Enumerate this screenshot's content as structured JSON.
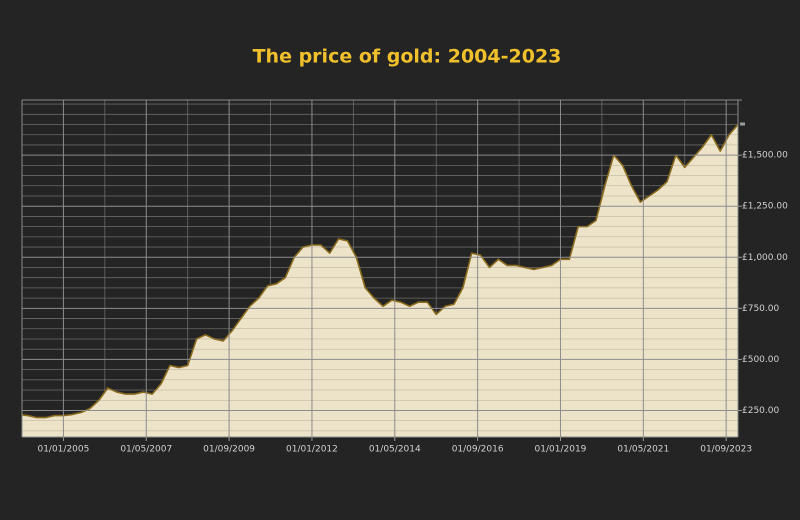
{
  "chart_data": {
    "type": "area",
    "title": "The price of gold: 2004-2023",
    "x": [
      "01/11/2003",
      "01/01/2004",
      "01/04/2004",
      "01/07/2004",
      "01/10/2004",
      "01/01/2005",
      "01/04/2005",
      "01/07/2005",
      "01/10/2005",
      "01/01/2006",
      "01/04/2006",
      "01/07/2006",
      "01/10/2006",
      "01/01/2007",
      "01/04/2007",
      "01/07/2007",
      "01/10/2007",
      "01/01/2008",
      "01/04/2008",
      "01/07/2008",
      "01/10/2008",
      "01/01/2009",
      "01/04/2009",
      "01/07/2009",
      "01/10/2009",
      "01/01/2010",
      "01/04/2010",
      "01/07/2010",
      "01/10/2010",
      "01/01/2011",
      "01/04/2011",
      "01/07/2011",
      "01/10/2011",
      "01/01/2012",
      "01/04/2012",
      "01/07/2012",
      "01/10/2012",
      "01/01/2013",
      "01/04/2013",
      "01/07/2013",
      "01/10/2013",
      "01/01/2014",
      "01/04/2014",
      "01/07/2014",
      "01/10/2014",
      "01/01/2015",
      "01/04/2015",
      "01/07/2015",
      "01/10/2015",
      "01/01/2016",
      "01/04/2016",
      "01/07/2016",
      "01/10/2016",
      "01/01/2017",
      "01/04/2017",
      "01/07/2017",
      "01/10/2017",
      "01/01/2018",
      "01/04/2018",
      "01/07/2018",
      "01/10/2018",
      "01/01/2019",
      "01/04/2019",
      "01/07/2019",
      "01/10/2019",
      "01/01/2020",
      "01/04/2020",
      "01/07/2020",
      "01/10/2020",
      "01/01/2021",
      "01/04/2021",
      "01/07/2021",
      "01/10/2021",
      "01/01/2022",
      "01/04/2022",
      "01/07/2022",
      "01/10/2022",
      "01/01/2023",
      "01/04/2023",
      "01/07/2023",
      "01/10/2023",
      "01/01/2024"
    ],
    "values": [
      228,
      225,
      215,
      215,
      225,
      225,
      230,
      240,
      260,
      300,
      360,
      340,
      330,
      330,
      340,
      330,
      380,
      470,
      460,
      470,
      600,
      620,
      600,
      590,
      640,
      700,
      760,
      800,
      860,
      870,
      900,
      1000,
      1050,
      1060,
      1060,
      1020,
      1090,
      1080,
      1000,
      850,
      800,
      760,
      790,
      780,
      760,
      780,
      780,
      720,
      760,
      770,
      850,
      1020,
      1010,
      950,
      990,
      960,
      960,
      950,
      940,
      950,
      960,
      990,
      990,
      1150,
      1150,
      1180,
      1350,
      1500,
      1450,
      1350,
      1270,
      1300,
      1330,
      1370,
      1500,
      1440,
      1490,
      1540,
      1600,
      1520,
      1600,
      1650
    ],
    "color": "#ede3c8",
    "line_color": "#8a6a1c",
    "xlim": [
      "01/11/2003",
      "01/01/2024"
    ],
    "xticks": [
      "01/01/2005",
      "01/05/2007",
      "01/09/2009",
      "01/01/2012",
      "01/05/2014",
      "01/09/2016",
      "01/01/2019",
      "01/05/2021",
      "01/09/2023"
    ],
    "ylim": [
      120,
      1770
    ],
    "yticks": [
      {
        "value": 250,
        "label": "£250.00"
      },
      {
        "value": 500,
        "label": "£500.00"
      },
      {
        "value": 750,
        "label": "£750.00"
      },
      {
        "value": 1000,
        "label": "£1,000.00"
      },
      {
        "value": 1250,
        "label": "£1,250.00"
      },
      {
        "value": 1500,
        "label": "£1,500.00"
      }
    ],
    "grid": true
  }
}
